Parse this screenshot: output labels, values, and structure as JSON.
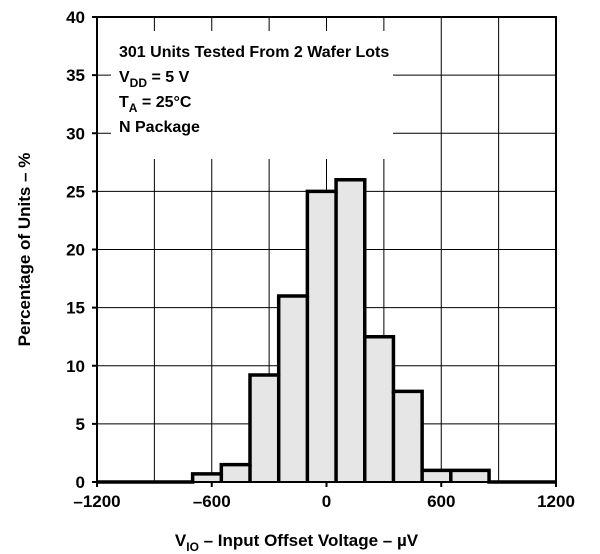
{
  "chart_data": {
    "type": "bar",
    "subtype": "histogram",
    "x": {
      "label_main": "V",
      "label_sub": "IO",
      "label_rest": " – Input Offset Voltage – µV",
      "lim": [
        -1200,
        1200
      ],
      "ticks": [
        -1200,
        -600,
        0,
        600,
        1200
      ],
      "tick_labels": [
        "–1200",
        "–600",
        "0",
        "600",
        "1200"
      ],
      "grid_step": 300
    },
    "y": {
      "label": "Percentage of Units – %",
      "lim": [
        0,
        40
      ],
      "ticks": [
        0,
        5,
        10,
        15,
        20,
        25,
        30,
        35,
        40
      ],
      "tick_labels": [
        "0",
        "5",
        "10",
        "15",
        "20",
        "25",
        "30",
        "35",
        "40"
      ]
    },
    "bins": [
      {
        "x0": -700,
        "x1": -550,
        "value": 0.7
      },
      {
        "x0": -550,
        "x1": -400,
        "value": 1.5
      },
      {
        "x0": -400,
        "x1": -250,
        "value": 9.2
      },
      {
        "x0": -250,
        "x1": -100,
        "value": 16.0
      },
      {
        "x0": -100,
        "x1": 50,
        "value": 25.0
      },
      {
        "x0": 50,
        "x1": 200,
        "value": 26.0
      },
      {
        "x0": 200,
        "x1": 350,
        "value": 12.5
      },
      {
        "x0": 350,
        "x1": 500,
        "value": 7.8
      },
      {
        "x0": 500,
        "x1": 650,
        "value": 1.0
      },
      {
        "x0": 650,
        "x1": 850,
        "value": 1.0
      }
    ],
    "annotations": [
      {
        "main": "301 Units Tested From 2 Wafer Lots"
      },
      {
        "main": "V",
        "sub": "DD",
        "rest": " = 5 V"
      },
      {
        "main": "T",
        "sub": "A",
        "rest": " = 25°C"
      },
      {
        "main": "N Package"
      }
    ],
    "grid": true,
    "colors": {
      "fill": "#e6e6e6",
      "line": "#000000",
      "grid": "#000000",
      "annotation_bg": "#ffffff"
    }
  }
}
